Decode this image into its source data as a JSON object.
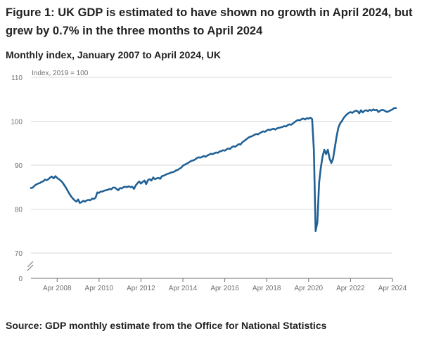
{
  "header": {
    "title": "Figure 1: UK GDP is estimated to have shown no growth in April 2024, but grew by 0.7% in the three months to April 2024",
    "subtitle": "Monthly index, January 2007 to April 2024, UK"
  },
  "footer": {
    "source": "Source: GDP monthly estimate from the Office for National Statistics"
  },
  "colors": {
    "line": "#206095",
    "gridline": "#d9d9d9",
    "axis_text": "#707070"
  },
  "chart_data": {
    "type": "line",
    "title": "Monthly index, January 2007 to April 2024, UK",
    "ylabel": "Index, 2019 = 100",
    "xlabel": "",
    "ylim": [
      0,
      110
    ],
    "broken_axis": true,
    "yticks": [
      0,
      70,
      80,
      90,
      100,
      110
    ],
    "ytick_labels": [
      "0",
      "70",
      "80",
      "90",
      "100",
      "110"
    ],
    "xticks": [
      15,
      39,
      63,
      87,
      111,
      135,
      159,
      183,
      207
    ],
    "xtick_labels": [
      "Apr 2008",
      "Apr 2010",
      "Apr 2012",
      "Apr 2014",
      "Apr 2016",
      "Apr 2018",
      "Apr 2020",
      "Apr 2022",
      "Apr 2024"
    ],
    "x_domain": [
      0,
      207
    ],
    "series": [
      {
        "name": "Monthly GDP index",
        "start": "January 2007",
        "values": [
          84.8,
          84.9,
          85.3,
          85.6,
          85.8,
          85.9,
          86.2,
          86.3,
          86.7,
          86.6,
          86.8,
          87.2,
          87.4,
          87.0,
          87.5,
          87.1,
          86.8,
          86.5,
          86.1,
          85.5,
          84.9,
          84.2,
          83.5,
          82.9,
          82.4,
          82.0,
          81.7,
          82.2,
          81.4,
          81.6,
          81.9,
          81.7,
          82.0,
          82.1,
          82.0,
          82.4,
          82.3,
          82.6,
          83.8,
          83.7,
          84.0,
          84.0,
          84.2,
          84.3,
          84.4,
          84.6,
          84.5,
          84.9,
          84.9,
          84.6,
          84.3,
          84.8,
          84.7,
          85.0,
          85.1,
          85.0,
          85.2,
          85.0,
          85.1,
          84.6,
          85.4,
          85.9,
          86.3,
          85.8,
          86.2,
          86.5,
          85.7,
          86.6,
          86.8,
          86.5,
          87.2,
          86.8,
          87.0,
          87.1,
          86.9,
          87.5,
          87.6,
          87.8,
          88.0,
          88.1,
          88.3,
          88.4,
          88.5,
          88.8,
          88.9,
          89.2,
          89.4,
          89.9,
          90.1,
          90.3,
          90.5,
          90.8,
          91.0,
          91.1,
          91.3,
          91.6,
          91.8,
          91.7,
          91.9,
          92.1,
          91.9,
          92.2,
          92.4,
          92.6,
          92.5,
          92.7,
          92.9,
          92.8,
          93.1,
          93.2,
          93.4,
          93.3,
          93.6,
          93.8,
          93.7,
          94.1,
          94.3,
          94.2,
          94.5,
          94.8,
          94.7,
          95.2,
          95.5,
          95.8,
          96.1,
          96.4,
          96.5,
          96.7,
          96.9,
          97.1,
          97.0,
          97.3,
          97.5,
          97.7,
          97.6,
          97.9,
          98.1,
          98.0,
          98.2,
          98.3,
          98.1,
          98.4,
          98.5,
          98.6,
          98.7,
          98.9,
          98.8,
          99.1,
          99.3,
          99.2,
          99.5,
          99.8,
          100.1,
          100.3,
          100.2,
          100.5,
          100.6,
          100.4,
          100.7,
          100.6,
          100.8,
          100.5,
          93.5,
          75.0,
          77.0,
          86.0,
          89.5,
          92.0,
          93.5,
          92.5,
          93.5,
          91.5,
          90.5,
          91.5,
          94.0,
          96.5,
          98.5,
          99.5,
          100.0,
          100.7,
          101.2,
          101.6,
          101.9,
          102.1,
          101.9,
          102.2,
          102.4,
          102.3,
          101.8,
          102.5,
          102.0,
          102.4,
          102.5,
          102.3,
          102.6,
          102.4,
          102.7,
          102.5,
          102.6,
          102.1,
          102.4,
          102.6,
          102.5,
          102.3,
          102.1,
          102.3,
          102.5,
          102.7,
          103.0,
          103.0
        ]
      }
    ]
  }
}
